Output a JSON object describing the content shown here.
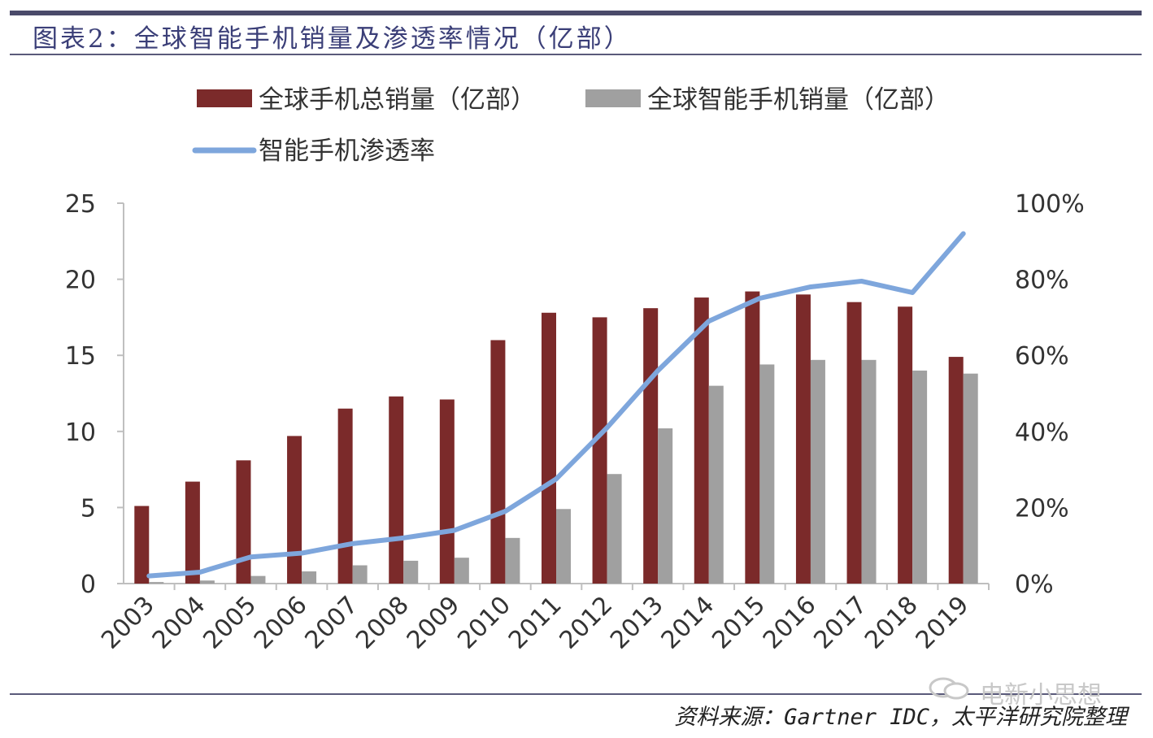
{
  "title": "图表2：全球智能手机销量及渗透率情况（亿部）",
  "source": "资料来源：Gartner IDC，太平洋研究院整理",
  "watermark": "电新小思想",
  "colors": {
    "total": "#7b2a2a",
    "smart": "#a0a0a0",
    "rate": "#7ea6dc",
    "title": "#3b3f78"
  },
  "legend": {
    "total": "全球手机总销量（亿部）",
    "smart": "全球智能手机销量（亿部）",
    "rate": "智能手机渗透率"
  },
  "chart_data": {
    "type": "bar",
    "categories": [
      "2003",
      "2004",
      "2005",
      "2006",
      "2007",
      "2008",
      "2009",
      "2010",
      "2011",
      "2012",
      "2013",
      "2014",
      "2015",
      "2016",
      "2017",
      "2018",
      "2019"
    ],
    "series": [
      {
        "name": "全球手机总销量（亿部）",
        "type": "bar",
        "axis": "left",
        "values": [
          5.1,
          6.7,
          8.1,
          9.7,
          11.5,
          12.3,
          12.1,
          16.0,
          17.8,
          17.5,
          18.1,
          18.8,
          19.2,
          19.0,
          18.5,
          18.2,
          14.9
        ]
      },
      {
        "name": "全球智能手机销量（亿部）",
        "type": "bar",
        "axis": "left",
        "values": [
          0.1,
          0.2,
          0.5,
          0.8,
          1.2,
          1.5,
          1.7,
          3.0,
          4.9,
          7.2,
          10.2,
          13.0,
          14.4,
          14.7,
          14.7,
          14.0,
          13.8
        ]
      },
      {
        "name": "智能手机渗透率",
        "type": "line",
        "axis": "right",
        "values": [
          0.02,
          0.03,
          0.07,
          0.08,
          0.105,
          0.12,
          0.14,
          0.19,
          0.275,
          0.41,
          0.56,
          0.69,
          0.75,
          0.78,
          0.795,
          0.765,
          0.92
        ]
      }
    ],
    "yaxis_left": {
      "ticks": [
        "0",
        "5",
        "10",
        "15",
        "20",
        "25"
      ],
      "range": [
        0,
        25
      ]
    },
    "yaxis_right": {
      "ticks": [
        "0%",
        "20%",
        "40%",
        "60%",
        "80%",
        "100%"
      ],
      "range": [
        0,
        1
      ]
    },
    "legend_position": "top",
    "grid": false
  }
}
